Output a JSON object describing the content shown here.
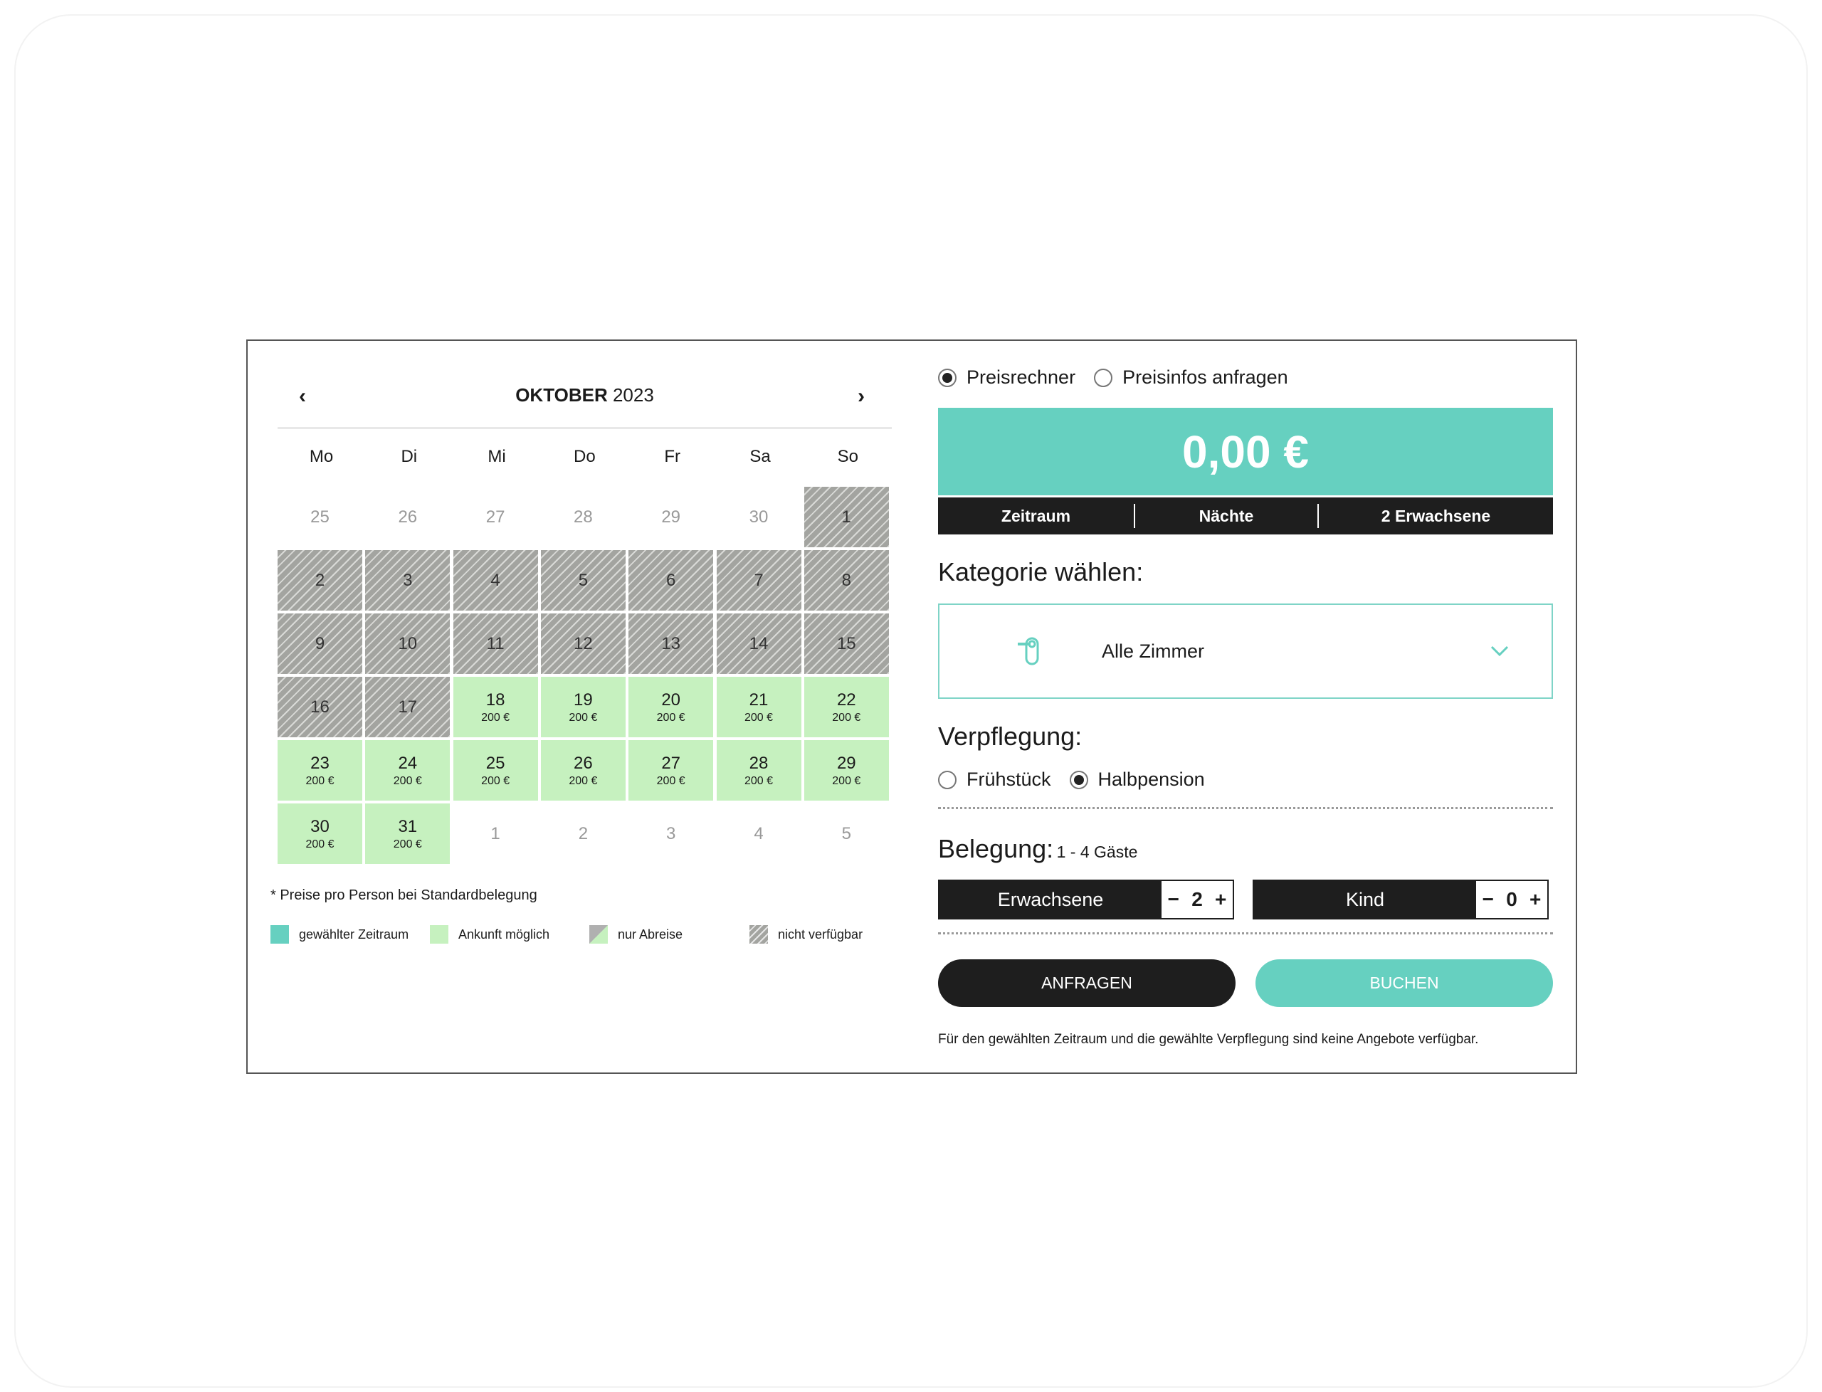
{
  "calendar": {
    "month": "OKTOBER",
    "year": "2023",
    "weekdays": [
      "Mo",
      "Di",
      "Mi",
      "Do",
      "Fr",
      "Sa",
      "So"
    ],
    "weeks": [
      [
        {
          "d": "25",
          "s": "out"
        },
        {
          "d": "26",
          "s": "out"
        },
        {
          "d": "27",
          "s": "out"
        },
        {
          "d": "28",
          "s": "out"
        },
        {
          "d": "29",
          "s": "out"
        },
        {
          "d": "30",
          "s": "out"
        },
        {
          "d": "1",
          "s": "na"
        }
      ],
      [
        {
          "d": "2",
          "s": "na"
        },
        {
          "d": "3",
          "s": "na"
        },
        {
          "d": "4",
          "s": "na"
        },
        {
          "d": "5",
          "s": "na"
        },
        {
          "d": "6",
          "s": "na"
        },
        {
          "d": "7",
          "s": "na"
        },
        {
          "d": "8",
          "s": "na"
        }
      ],
      [
        {
          "d": "9",
          "s": "na"
        },
        {
          "d": "10",
          "s": "na"
        },
        {
          "d": "11",
          "s": "na"
        },
        {
          "d": "12",
          "s": "na"
        },
        {
          "d": "13",
          "s": "na"
        },
        {
          "d": "14",
          "s": "na"
        },
        {
          "d": "15",
          "s": "na"
        }
      ],
      [
        {
          "d": "16",
          "s": "na"
        },
        {
          "d": "17",
          "s": "na"
        },
        {
          "d": "18",
          "s": "ok",
          "p": "200 €"
        },
        {
          "d": "19",
          "s": "ok",
          "p": "200 €"
        },
        {
          "d": "20",
          "s": "ok",
          "p": "200 €"
        },
        {
          "d": "21",
          "s": "ok",
          "p": "200 €"
        },
        {
          "d": "22",
          "s": "ok",
          "p": "200 €"
        }
      ],
      [
        {
          "d": "23",
          "s": "ok",
          "p": "200 €"
        },
        {
          "d": "24",
          "s": "ok",
          "p": "200 €"
        },
        {
          "d": "25",
          "s": "ok",
          "p": "200 €"
        },
        {
          "d": "26",
          "s": "ok",
          "p": "200 €"
        },
        {
          "d": "27",
          "s": "ok",
          "p": "200 €"
        },
        {
          "d": "28",
          "s": "ok",
          "p": "200 €"
        },
        {
          "d": "29",
          "s": "ok",
          "p": "200 €"
        }
      ],
      [
        {
          "d": "30",
          "s": "ok",
          "p": "200 €"
        },
        {
          "d": "31",
          "s": "ok",
          "p": "200 €"
        },
        {
          "d": "1",
          "s": "out"
        },
        {
          "d": "2",
          "s": "out"
        },
        {
          "d": "3",
          "s": "out"
        },
        {
          "d": "4",
          "s": "out"
        },
        {
          "d": "5",
          "s": "out"
        }
      ]
    ],
    "note": "* Preise pro Person bei Standardbelegung",
    "legend": [
      "gewählter Zeitraum",
      "Ankunft möglich",
      "nur Abreise",
      "nicht verfügbar"
    ]
  },
  "mode": {
    "options": [
      "Preisrechner",
      "Preisinfos anfragen"
    ],
    "selected": "Preisrechner"
  },
  "price": "0,00 €",
  "summary": [
    "Zeitraum",
    "Nächte",
    "2 Erwachsene"
  ],
  "category": {
    "title": "Kategorie wählen:",
    "value": "Alle Zimmer"
  },
  "meals": {
    "title": "Verpflegung:",
    "options": [
      "Frühstück",
      "Halbpension"
    ],
    "selected": "Halbpension"
  },
  "occupancy": {
    "title": "Belegung:",
    "hint": "1 - 4 Gäste",
    "adults_label": "Erwachsene",
    "adults": "2",
    "child_label": "Kind",
    "children": "0",
    "minus": "−",
    "plus": "+"
  },
  "buttons": {
    "inquire": "ANFRAGEN",
    "book": "BUCHEN"
  },
  "message": "Für den gewählten Zeitraum und die gewählte Verpflegung sind keine Angebote verfügbar.",
  "colors": {
    "accent": "#66d0c0",
    "arrival": "#c6f1bf",
    "dark": "#1e1e1e"
  }
}
